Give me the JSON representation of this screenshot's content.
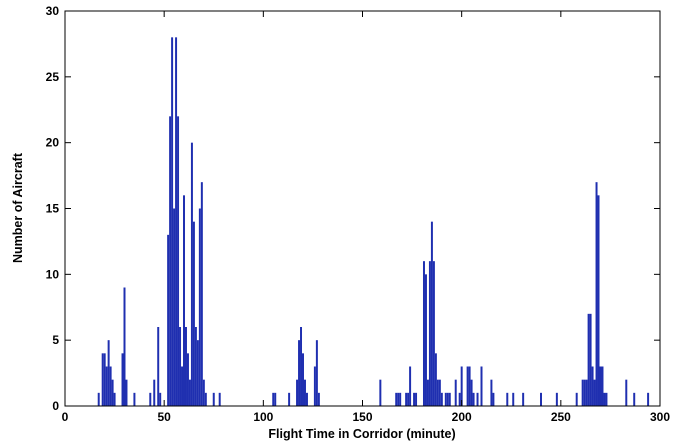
{
  "chart_data": {
    "type": "bar",
    "title": "",
    "xlabel": "Flight Time in Corridor (minute)",
    "ylabel": "Number of Aircraft",
    "xlim": [
      0,
      300
    ],
    "ylim": [
      0,
      30
    ],
    "xticks": [
      0,
      50,
      100,
      150,
      200,
      250,
      300
    ],
    "yticks": [
      0,
      5,
      10,
      15,
      20,
      25,
      30
    ],
    "grid": false,
    "bar_color": "#1f2fb0",
    "bar_width": 1,
    "x": [
      17,
      19,
      20,
      21,
      22,
      23,
      24,
      25,
      29,
      30,
      31,
      35,
      43,
      45,
      47,
      48,
      52,
      53,
      54,
      55,
      56,
      57,
      58,
      59,
      60,
      61,
      62,
      63,
      64,
      65,
      66,
      67,
      68,
      69,
      70,
      71,
      75,
      78,
      105,
      106,
      113,
      117,
      118,
      119,
      120,
      121,
      122,
      126,
      127,
      128,
      159,
      167,
      168,
      169,
      172,
      173,
      174,
      176,
      177,
      181,
      182,
      183,
      184,
      185,
      186,
      187,
      188,
      189,
      190,
      192,
      193,
      194,
      197,
      199,
      200,
      203,
      204,
      205,
      206,
      208,
      210,
      215,
      216,
      223,
      226,
      231,
      240,
      248,
      258,
      261,
      262,
      263,
      264,
      265,
      266,
      267,
      268,
      269,
      270,
      271,
      272,
      273,
      283,
      287,
      294
    ],
    "values": [
      1,
      4,
      4,
      3,
      5,
      3,
      2,
      1,
      4,
      9,
      2,
      1,
      1,
      2,
      6,
      1,
      13,
      22,
      28,
      15,
      28,
      22,
      6,
      3,
      16,
      6,
      4,
      2,
      20,
      14,
      6,
      5,
      15,
      17,
      2,
      1,
      1,
      1,
      1,
      1,
      1,
      2,
      5,
      6,
      4,
      2,
      1,
      3,
      5,
      1,
      2,
      1,
      1,
      1,
      1,
      1,
      3,
      1,
      1,
      11,
      10,
      2,
      11,
      14,
      11,
      4,
      2,
      2,
      1,
      1,
      1,
      1,
      2,
      1,
      3,
      3,
      3,
      2,
      1,
      1,
      3,
      2,
      1,
      1,
      1,
      1,
      1,
      1,
      1,
      2,
      2,
      2,
      7,
      7,
      3,
      2,
      17,
      16,
      3,
      3,
      1,
      1,
      2,
      1,
      1
    ]
  }
}
